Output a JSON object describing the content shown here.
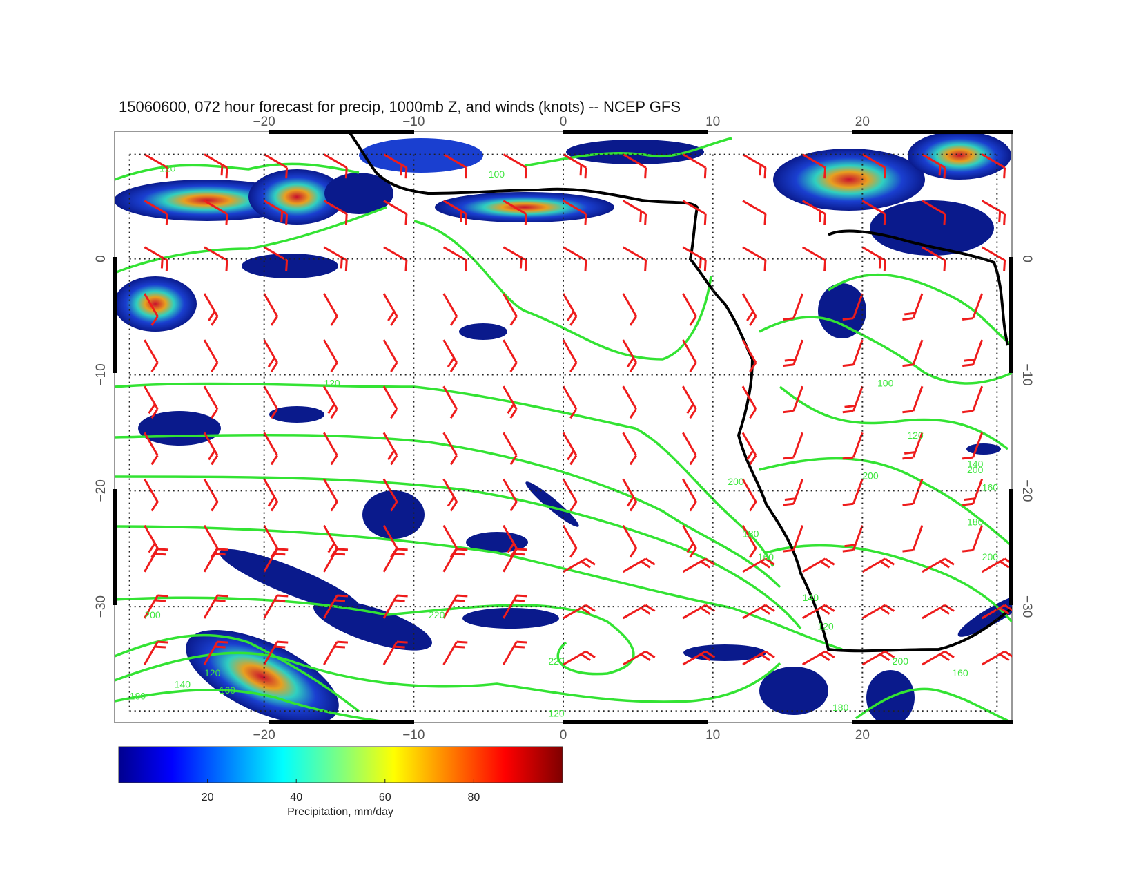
{
  "title": "15060600, 072 hour forecast for precip, 1000mb Z, and winds (knots) -- NCEP GFS",
  "map": {
    "lon_range": [
      -30,
      30
    ],
    "lat_range": [
      -40,
      11
    ],
    "lon_ticks": [
      -20,
      -10,
      0,
      10,
      20
    ],
    "lat_ticks": [
      0,
      -10,
      -20,
      -30
    ],
    "lon_tick_labels": [
      "−20",
      "−10",
      "0",
      "10",
      "20"
    ],
    "lat_tick_labels": [
      "0",
      "−10",
      "−20",
      "−30"
    ],
    "right_lat_tick_labels": [
      "0",
      "−10",
      "−20",
      "−30"
    ],
    "grid": "dotted",
    "colors": {
      "coastline": "#000000",
      "contours": "#33e333",
      "wind_barbs": "#ee1c1c",
      "precip_low": "#0a1a8c",
      "precip_high": "#800000"
    },
    "contour_labels": [
      "120",
      "100",
      "120",
      "140",
      "160",
      "180",
      "200",
      "220",
      "220",
      "200",
      "180",
      "160",
      "140",
      "120",
      "100",
      "120",
      "140",
      "160",
      "180",
      "200",
      "200",
      "180",
      "160",
      "200",
      "200",
      "120",
      "120"
    ]
  },
  "colorbar": {
    "label": "Precipitation, mm/day",
    "ticks": [
      "20",
      "40",
      "60",
      "80"
    ],
    "range": [
      0,
      100
    ],
    "colormap": "jet"
  }
}
